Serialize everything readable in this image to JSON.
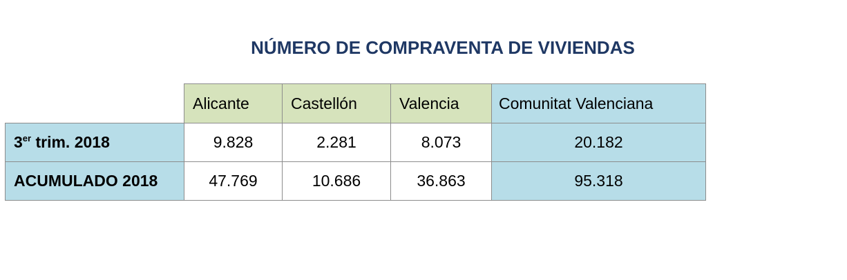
{
  "title": "NÚMERO DE COMPRAVENTA DE VIVIENDAS",
  "table": {
    "columns": [
      "Alicante",
      "Castellón",
      "Valencia",
      "Comunitat Valenciana"
    ],
    "rows": [
      {
        "label_main": "3",
        "label_sup": "er",
        "label_rest": " trim. 2018",
        "values": [
          "9.828",
          "2.281",
          "8.073",
          "20.182"
        ]
      },
      {
        "label_main": "ACUMULADO 2018",
        "label_sup": "",
        "label_rest": "",
        "values": [
          "47.769",
          "10.686",
          "36.863",
          "95.318"
        ]
      }
    ]
  },
  "colors": {
    "title": "#1f3864",
    "header_province": "#d6e3bc",
    "header_total": "#b7dde8",
    "row_label": "#b7dde8"
  }
}
